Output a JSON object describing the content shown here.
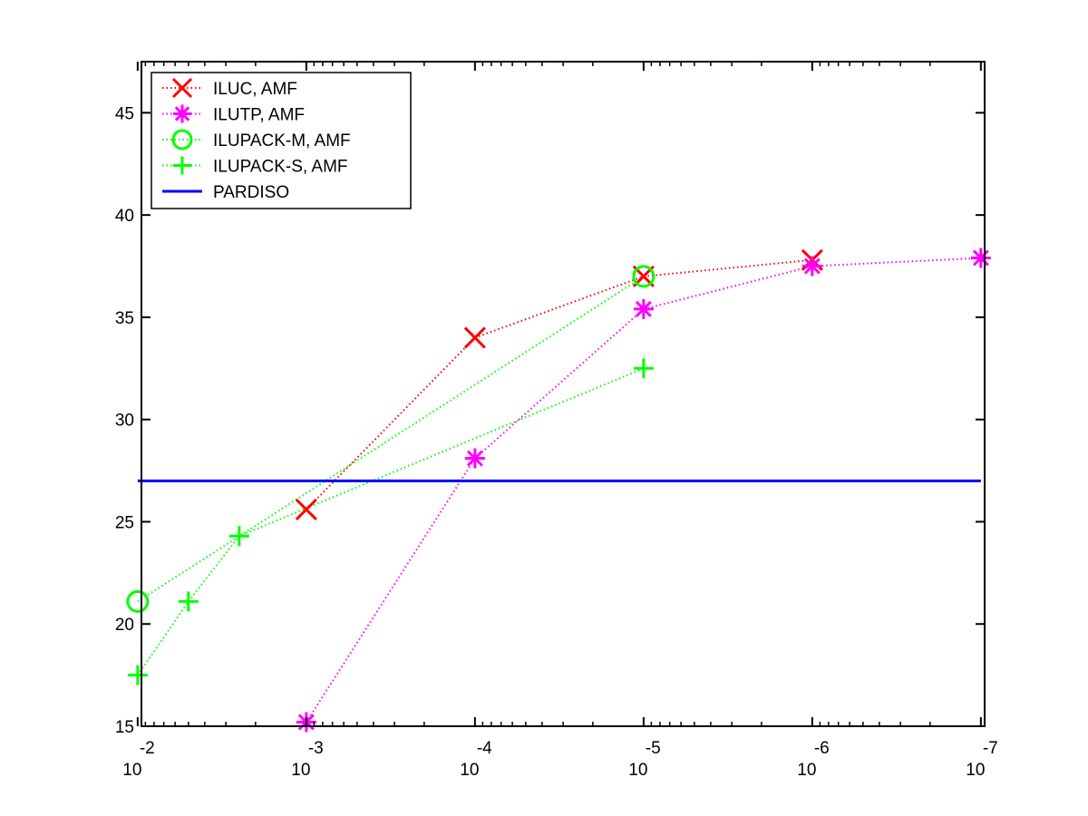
{
  "chart_data": {
    "type": "line",
    "title": "",
    "xlabel": "",
    "ylabel": "",
    "x_scale": "log",
    "x_reversed": true,
    "xlim": [
      0.0095,
      9.5e-08
    ],
    "ylim": [
      15,
      47.5
    ],
    "x_ticks": [
      {
        "base": "10",
        "exponent": "-2",
        "value": 0.01
      },
      {
        "base": "10",
        "exponent": "-3",
        "value": 0.001
      },
      {
        "base": "10",
        "exponent": "-4",
        "value": 0.0001
      },
      {
        "base": "10",
        "exponent": "-5",
        "value": 1e-05
      },
      {
        "base": "10",
        "exponent": "-6",
        "value": 1e-06
      },
      {
        "base": "10",
        "exponent": "-7",
        "value": 1e-07
      }
    ],
    "y_ticks": [
      "15",
      "20",
      "25",
      "30",
      "35",
      "40",
      "45"
    ],
    "y_tick_values": [
      15,
      20,
      25,
      30,
      35,
      40,
      45
    ],
    "grid": false,
    "legend_position": "top-left",
    "series": [
      {
        "name": "ILUC, AMF",
        "color": "#ff0000",
        "marker": "x",
        "line": "dotted",
        "x": [
          0.001,
          0.0001,
          1e-05,
          1e-06
        ],
        "y": [
          25.6,
          34.0,
          37.0,
          37.8
        ]
      },
      {
        "name": "ILUTP, AMF",
        "color": "#ff00ff",
        "marker": "asterisk",
        "line": "dotted",
        "x": [
          0.001,
          0.0001,
          1e-05,
          1e-06,
          1e-07
        ],
        "y": [
          15.2,
          28.1,
          35.4,
          37.5,
          37.9
        ]
      },
      {
        "name": "ILUPACK-M, AMF",
        "color": "#00ff00",
        "marker": "circle",
        "line": "dotted",
        "x": [
          0.01,
          1e-05
        ],
        "y": [
          21.1,
          37.0
        ]
      },
      {
        "name": "ILUPACK-S, AMF",
        "color": "#00ff00",
        "marker": "plus",
        "line": "dotted",
        "x": [
          0.01,
          0.005,
          0.0025,
          1e-05
        ],
        "y": [
          17.5,
          21.1,
          24.3,
          32.5
        ]
      },
      {
        "name": "PARDISO",
        "color": "#0000ff",
        "marker": "none",
        "line": "solid",
        "x": [
          0.01,
          1e-07
        ],
        "y": [
          27.0,
          27.0
        ]
      }
    ]
  }
}
